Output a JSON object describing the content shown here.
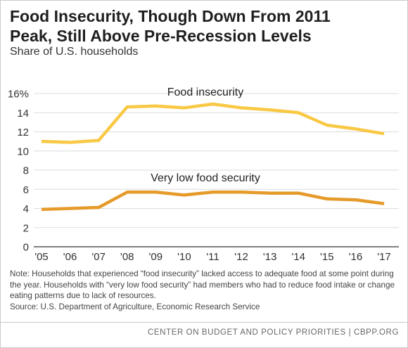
{
  "header": {
    "title_line1": "Food Insecurity, Though Down From 2011",
    "title_line2": "Peak, Still Above Pre-Recession Levels",
    "subtitle": "Share of U.S. households"
  },
  "chart_data": {
    "type": "line",
    "x": [
      "'05",
      "'06",
      "'07",
      "'08",
      "'09",
      "'10",
      "'11",
      "'12",
      "'13",
      "'14",
      "'15",
      "'16",
      "'17"
    ],
    "y_ticks": [
      "0",
      "2",
      "4",
      "6",
      "8",
      "10",
      "12",
      "14",
      "16%"
    ],
    "ylim": [
      0,
      16
    ],
    "grid": "horizontal",
    "legend": "inline labels",
    "series": [
      {
        "name": "Food insecurity",
        "color": "#f9c845",
        "values": [
          11.0,
          10.9,
          11.1,
          14.6,
          14.7,
          14.5,
          14.9,
          14.5,
          14.3,
          14.0,
          12.7,
          12.3,
          11.8
        ]
      },
      {
        "name": "Very low food security",
        "color": "#e59a2a",
        "values": [
          3.9,
          4.0,
          4.1,
          5.7,
          5.7,
          5.4,
          5.7,
          5.7,
          5.6,
          5.6,
          5.0,
          4.9,
          4.5
        ]
      }
    ]
  },
  "notes": {
    "note": "Note: Households that experienced “food insecurity” lacked access to adequate food at some point during the year. Households with “very low food security” had members who had to reduce food intake or change eating patterns due to lack of resources.",
    "source": "Source: U.S. Department of Agriculture, Economic Research Service"
  },
  "footer": {
    "text": "CENTER ON BUDGET AND POLICY PRIORITIES | CBPP.ORG"
  }
}
